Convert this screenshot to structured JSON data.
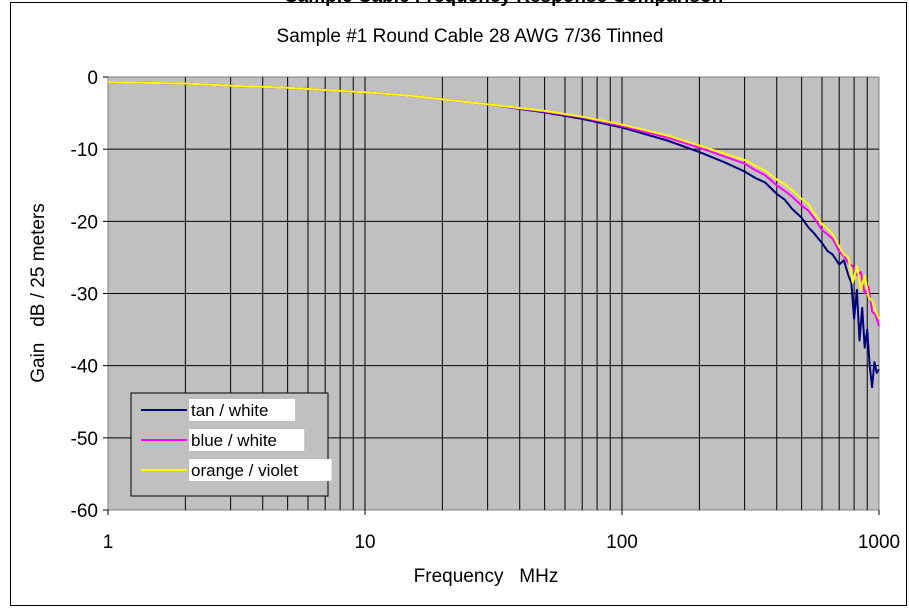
{
  "page": {
    "top_title_partial": "Sample Cable Frequency Response Comparison"
  },
  "chart_data": {
    "type": "line",
    "title": "Sample #1   Round Cable   28 AWG 7/36 Tinned",
    "xlabel": "Frequency   MHz",
    "ylabel": "Gain   dB / 25 meters",
    "x_scale": "log",
    "xlim": [
      1,
      1000
    ],
    "ylim": [
      -60,
      0
    ],
    "x_ticks": [
      1,
      10,
      100,
      1000
    ],
    "x_tick_labels": [
      "1",
      "10",
      "100",
      "1000"
    ],
    "y_ticks": [
      0,
      -10,
      -20,
      -30,
      -40,
      -50,
      -60
    ],
    "y_tick_labels": [
      "0",
      "-10",
      "-20",
      "-30",
      "-40",
      "-50",
      "-60"
    ],
    "grid": true,
    "plot_background": "#c0c0c0",
    "legend_position": "bottom-left",
    "series": [
      {
        "name": "tan / white",
        "color": "#000080",
        "x": [
          1,
          2,
          3,
          5,
          7,
          10,
          15,
          20,
          30,
          50,
          70,
          100,
          150,
          200,
          250,
          300,
          330,
          360,
          400,
          430,
          460,
          500,
          530,
          560,
          600,
          630,
          660,
          700,
          730,
          760,
          780,
          800,
          820,
          840,
          860,
          880,
          900,
          920,
          940,
          960,
          980,
          1000
        ],
        "y": [
          -0.7,
          -0.9,
          -1.2,
          -1.5,
          -1.8,
          -2.1,
          -2.6,
          -3.1,
          -3.8,
          -4.9,
          -5.8,
          -7.0,
          -8.8,
          -10.4,
          -11.8,
          -13.1,
          -14.0,
          -14.6,
          -16.2,
          -17.0,
          -18.3,
          -19.5,
          -20.8,
          -21.7,
          -23.0,
          -24.1,
          -24.6,
          -26.0,
          -25.4,
          -27.5,
          -28.5,
          -33.5,
          -29.5,
          -36.5,
          -32.0,
          -37.5,
          -35.0,
          -40.0,
          -43.0,
          -39.5,
          -41.0,
          -40.5
        ]
      },
      {
        "name": "blue / white",
        "color": "#ff00ff",
        "x": [
          1,
          2,
          3,
          5,
          7,
          10,
          15,
          20,
          30,
          50,
          70,
          100,
          150,
          200,
          250,
          300,
          330,
          360,
          400,
          430,
          460,
          500,
          530,
          560,
          600,
          630,
          660,
          700,
          730,
          760,
          790,
          820,
          850,
          880,
          910,
          940,
          970,
          1000
        ],
        "y": [
          -0.7,
          -0.9,
          -1.2,
          -1.5,
          -1.8,
          -2.1,
          -2.6,
          -3.1,
          -3.8,
          -4.8,
          -5.6,
          -6.8,
          -8.4,
          -9.8,
          -11.0,
          -12.0,
          -12.9,
          -13.6,
          -15.0,
          -15.8,
          -16.6,
          -17.8,
          -18.5,
          -19.6,
          -21.2,
          -21.8,
          -22.4,
          -24.2,
          -24.8,
          -25.8,
          -26.2,
          -27.5,
          -27.0,
          -30.0,
          -29.0,
          -32.5,
          -33.0,
          -34.5
        ]
      },
      {
        "name": "orange / violet",
        "color": "#ffff00",
        "x": [
          1,
          2,
          3,
          5,
          7,
          10,
          15,
          20,
          30,
          50,
          70,
          100,
          150,
          200,
          250,
          300,
          330,
          360,
          400,
          430,
          460,
          500,
          530,
          560,
          600,
          630,
          660,
          700,
          730,
          760,
          790,
          820,
          850,
          880,
          910,
          940,
          970,
          1000
        ],
        "y": [
          -0.7,
          -0.9,
          -1.2,
          -1.5,
          -1.8,
          -2.1,
          -2.6,
          -3.1,
          -3.8,
          -4.7,
          -5.5,
          -6.6,
          -8.1,
          -9.5,
          -10.6,
          -11.5,
          -12.3,
          -13.0,
          -14.2,
          -14.9,
          -15.7,
          -16.9,
          -17.6,
          -18.9,
          -20.4,
          -21.0,
          -21.8,
          -23.5,
          -24.6,
          -25.0,
          -28.5,
          -26.2,
          -29.5,
          -27.5,
          -30.5,
          -31.0,
          -32.5,
          -33.5
        ]
      }
    ]
  }
}
